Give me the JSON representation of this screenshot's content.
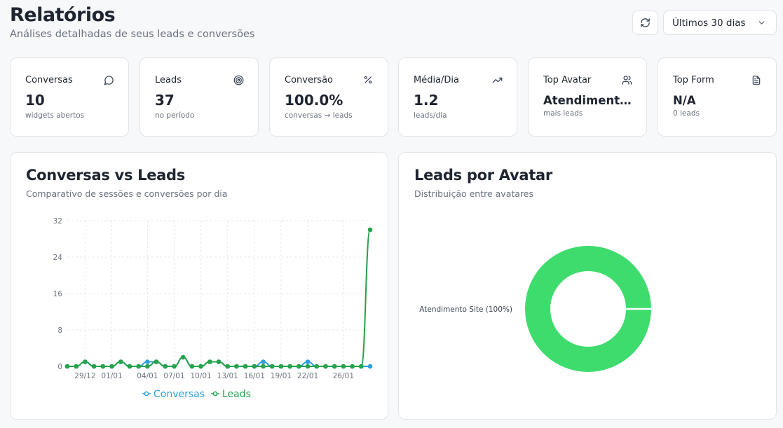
{
  "header": {
    "title": "Relatórios",
    "subtitle": "Análises detalhadas de seus leads e conversões",
    "refresh_icon": "refresh-icon",
    "range_selected": "Últimos 30 dias"
  },
  "stats": [
    {
      "label": "Conversas",
      "value": "10",
      "sub": "widgets abertos",
      "icon": "message-circle-icon"
    },
    {
      "label": "Leads",
      "value": "37",
      "sub": "no período",
      "icon": "target-icon"
    },
    {
      "label": "Conversão",
      "value": "100.0%",
      "sub": "conversas → leads",
      "icon": "percent-icon"
    },
    {
      "label": "Média/Dia",
      "value": "1.2",
      "sub": "leads/dia",
      "icon": "trending-up-icon"
    },
    {
      "label": "Top Avatar",
      "value": "Atendimento Site",
      "sub": "mais leads",
      "icon": "users-icon"
    },
    {
      "label": "Top Form",
      "value": "N/A",
      "sub": "0 leads",
      "icon": "file-text-icon"
    }
  ],
  "line_panel": {
    "title": "Conversas vs Leads",
    "subtitle": "Comparativo de sessões e conversões por dia"
  },
  "pie_panel": {
    "title": "Leads por Avatar",
    "subtitle": "Distribuição entre avatares"
  },
  "colors": {
    "conversas": "#2f9fdc",
    "leads": "#27a24b",
    "donut": "#3ddc6c"
  },
  "chart_data": [
    {
      "type": "line",
      "x_tick_labels": [
        "29/12",
        "01/01",
        "04/01",
        "07/01",
        "10/01",
        "13/01",
        "16/01",
        "19/01",
        "22/01",
        "26/01"
      ],
      "y_ticks": [
        0,
        8,
        16,
        24,
        32
      ],
      "ylim": [
        0,
        32
      ],
      "grid": true,
      "legend_position": "bottom",
      "series": [
        {
          "name": "Conversas",
          "values": [
            0,
            0,
            1,
            0,
            0,
            0,
            1,
            0,
            0,
            1,
            1,
            0,
            0,
            2,
            0,
            0,
            1,
            1,
            0,
            0,
            0,
            0,
            1,
            0,
            0,
            0,
            0,
            1,
            0,
            0,
            0,
            0,
            0,
            0,
            0
          ]
        },
        {
          "name": "Leads",
          "values": [
            0,
            0,
            1,
            0,
            0,
            0,
            1,
            0,
            0,
            0,
            1,
            0,
            0,
            2,
            0,
            0,
            1,
            1,
            0,
            0,
            0,
            0,
            0,
            0,
            0,
            0,
            0,
            0,
            0,
            0,
            0,
            0,
            0,
            0,
            30
          ]
        }
      ]
    },
    {
      "type": "pie",
      "donut": true,
      "slices": [
        {
          "label": "Atendimento Site (100%)",
          "value": 100
        }
      ]
    }
  ]
}
